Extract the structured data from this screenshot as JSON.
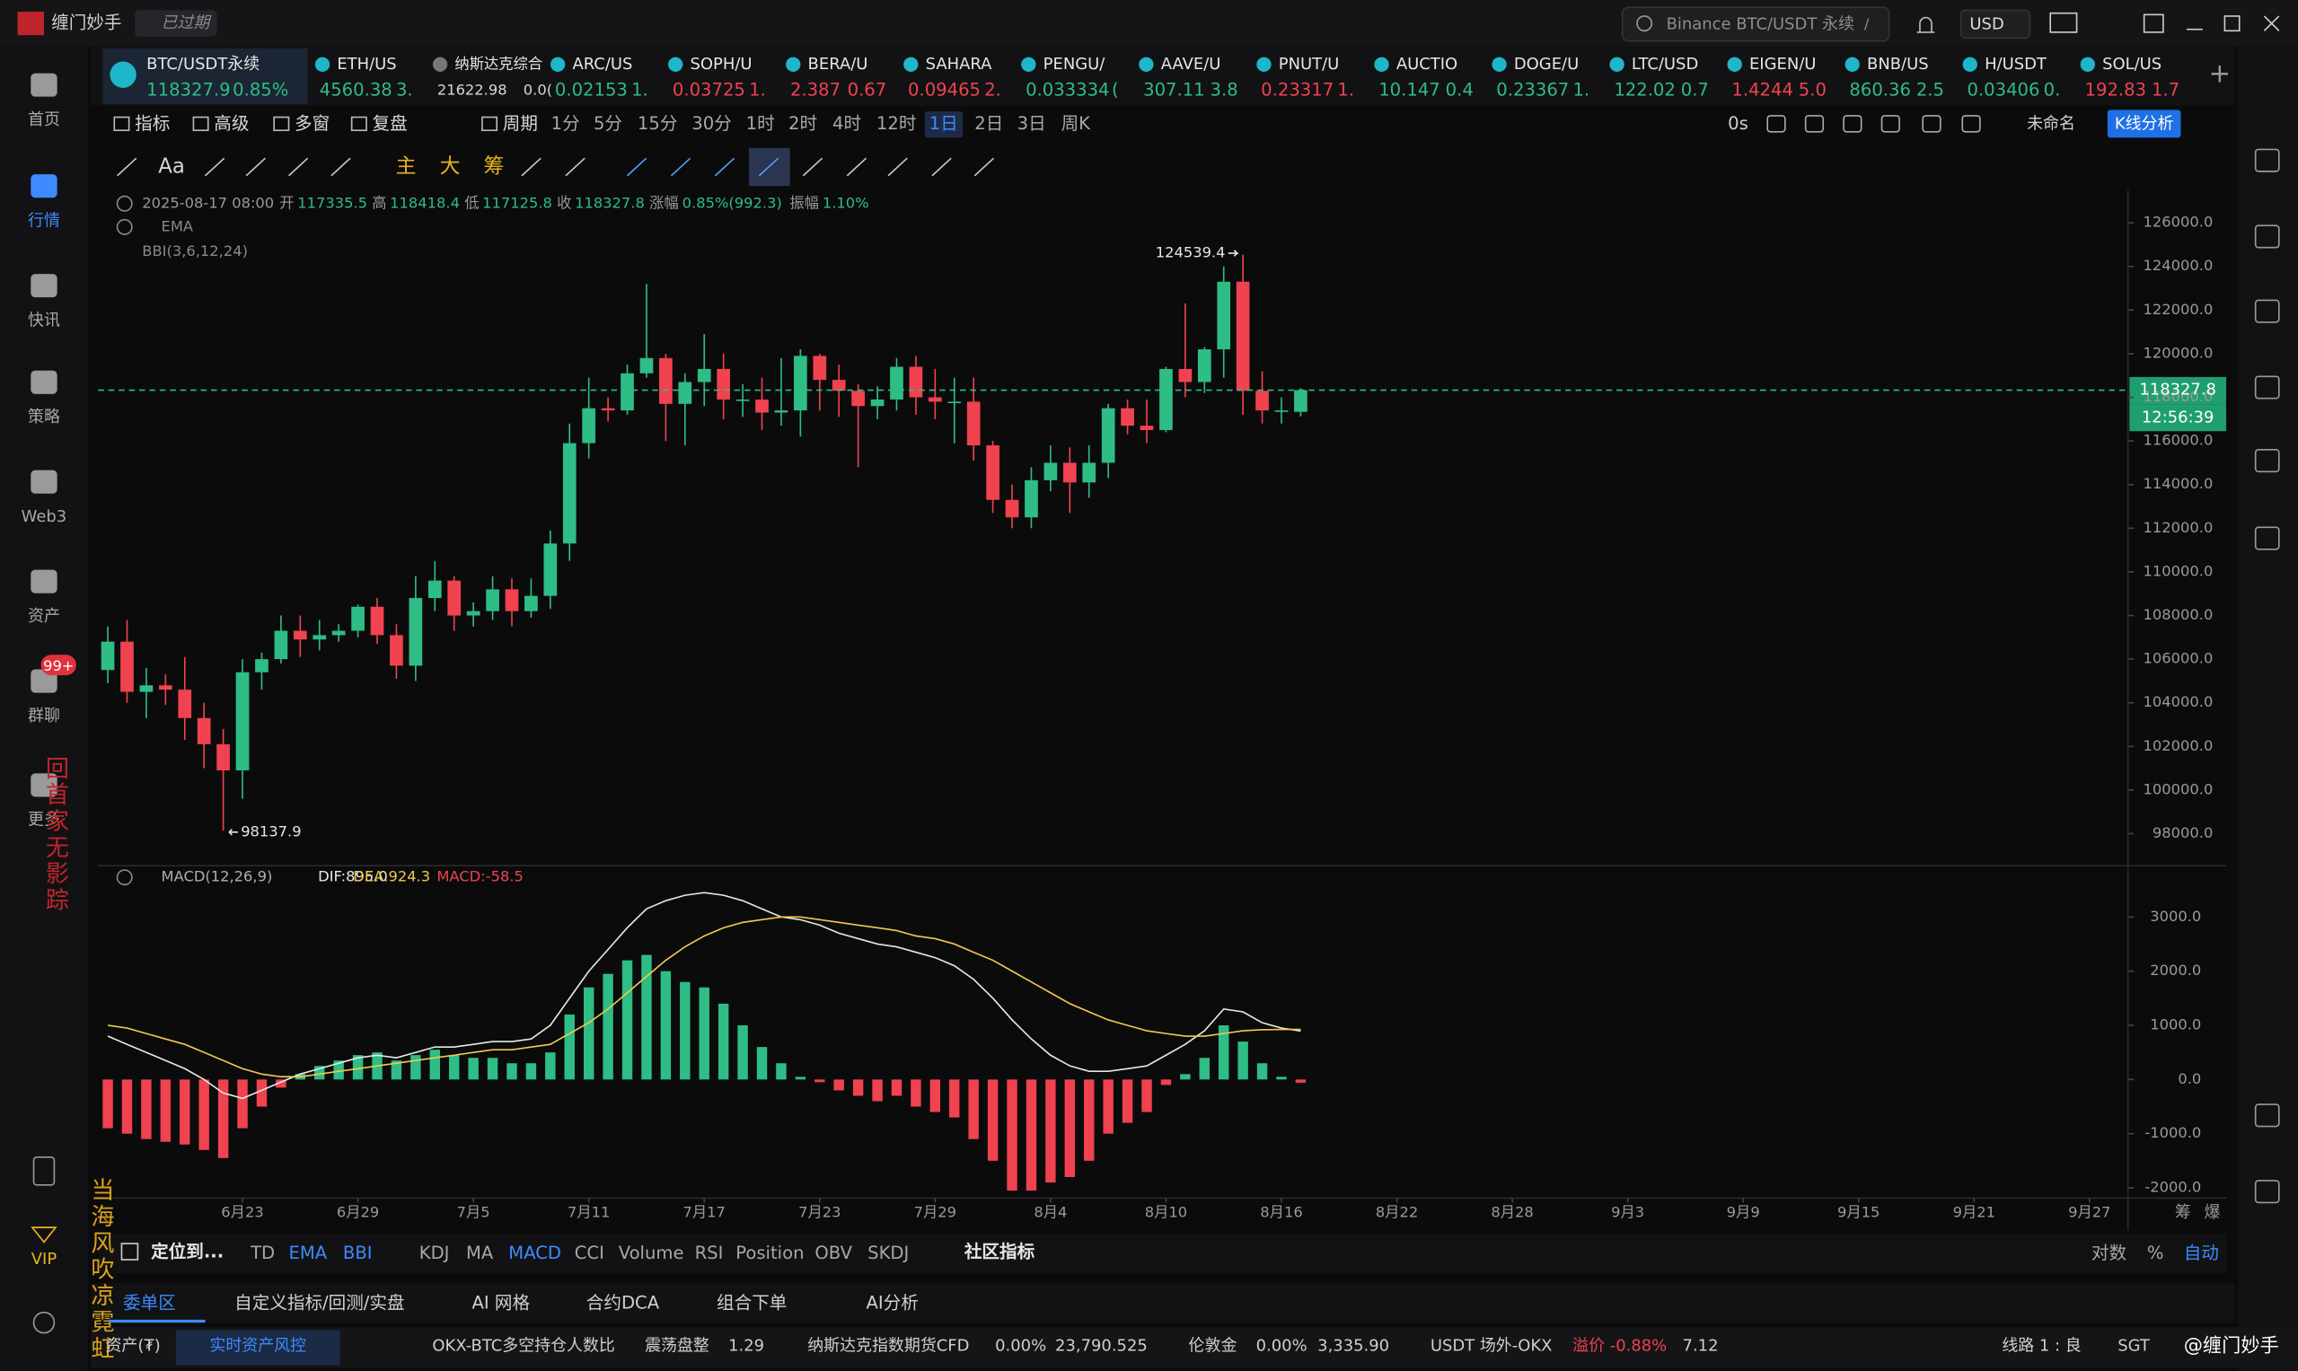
{
  "app": {
    "name": "缠门妙手",
    "status": "已过期",
    "search": "Binance BTC/USDT 永续",
    "search_key": "/",
    "currency": "USD"
  },
  "sidebar": {
    "items": [
      "首页",
      "行情",
      "快讯",
      "策略",
      "Web3",
      "资产",
      "群聊",
      "更多"
    ],
    "active_index": 1,
    "badge": "99+",
    "vip": "VIP"
  },
  "watermarks": [
    "回首家无影踪",
    "当海风吹凉霓虹"
  ],
  "tickers": [
    {
      "name": "BTC/USDT永续",
      "price": "118327.9",
      "change": "0.85%",
      "color": "#2ebd85"
    },
    {
      "name": "ETH/US",
      "price": "4560.38",
      "change": "3.",
      "color": "#2ebd85"
    },
    {
      "name": "纳斯达克综合",
      "price": "21622.98",
      "change": "0.0(",
      "color": "#d8d8d8"
    },
    {
      "name": "ARC/US",
      "price": "0.02153",
      "change": "1.",
      "color": "#2ebd85"
    },
    {
      "name": "SOPH/U",
      "price": "0.03725",
      "change": "1.",
      "color": "#f0424f"
    },
    {
      "name": "BERA/U",
      "price": "2.387",
      "change": "0.67",
      "color": "#f0424f"
    },
    {
      "name": "SAHARA",
      "price": "0.09465",
      "change": "2.",
      "color": "#f0424f"
    },
    {
      "name": "PENGU/",
      "price": "0.033334",
      "change": "(",
      "color": "#2ebd85"
    },
    {
      "name": "AAVE/U",
      "price": "307.11",
      "change": "3.8",
      "color": "#2ebd85"
    },
    {
      "name": "PNUT/U",
      "price": "0.23317",
      "change": "1.",
      "color": "#f0424f"
    },
    {
      "name": "AUCTIO",
      "price": "10.147",
      "change": "0.4",
      "color": "#2ebd85"
    },
    {
      "name": "DOGE/U",
      "price": "0.23367",
      "change": "1.",
      "color": "#2ebd85"
    },
    {
      "name": "LTC/USD",
      "price": "122.02",
      "change": "0.7",
      "color": "#2ebd85"
    },
    {
      "name": "EIGEN/U",
      "price": "1.4244",
      "change": "5.0",
      "color": "#f0424f"
    },
    {
      "name": "BNB/US",
      "price": "860.36",
      "change": "2.5",
      "color": "#2ebd85"
    },
    {
      "name": "H/USDT",
      "price": "0.03406",
      "change": "0.",
      "color": "#2ebd85"
    },
    {
      "name": "SOL/US",
      "price": "192.83",
      "change": "1.7",
      "color": "#f0424f"
    }
  ],
  "toolbar": {
    "items": [
      "指标",
      "高级",
      "多窗",
      "复盘",
      "周期"
    ],
    "periods": [
      "1分",
      "5分",
      "15分",
      "30分",
      "1时",
      "2时",
      "4时",
      "12时",
      "1日",
      "2日",
      "3日",
      "周K"
    ],
    "active_period_index": 8,
    "timer": "0s",
    "layout_name": "未命名",
    "analysis": "K线分析"
  },
  "draw_tools": [
    "Aa",
    "主",
    "大",
    "筹"
  ],
  "info": {
    "time": "2025-08-17 08:00",
    "fields": [
      [
        "开",
        "117335.5"
      ],
      [
        "高",
        "118418.4"
      ],
      [
        "低",
        "117125.8"
      ],
      [
        "收",
        "118327.8"
      ],
      [
        "涨幅",
        "0.85%(992.3)"
      ],
      [
        "振幅",
        "1.10%"
      ]
    ],
    "ema": "EMA",
    "bbi": "BBI(3,6,12,24)",
    "macd": "MACD(12,26,9)",
    "dif": "DIF:895.0",
    "dea": "DEA:924.3",
    "macd_value": "MACD:-58.5"
  },
  "chart_data": {
    "type": "candlestick",
    "up_color": "#2ebd85",
    "down_color": "#f0424f",
    "dif_color": "#e8e8e8",
    "dea_color": "#f2c94c",
    "open": [
      105500,
      106800,
      104500,
      104800,
      104600,
      103300,
      102100,
      100900,
      105400,
      106000,
      107300,
      106900,
      107100,
      107300,
      108400,
      107100,
      105700,
      108800,
      109600,
      108000,
      108200,
      109200,
      108200,
      108900,
      111300,
      115900,
      117500,
      117400,
      119100,
      119800,
      117700,
      118700,
      119300,
      117900,
      117900,
      117300,
      117400,
      119900,
      118800,
      118300,
      117600,
      117900,
      119400,
      118000,
      117800,
      117800,
      115800,
      113300,
      112500,
      114200,
      115000,
      114100,
      115000,
      117500,
      116700,
      116500,
      119300,
      118700,
      120200,
      123300,
      118300,
      117400,
      117335.5
    ],
    "high": [
      107500,
      107800,
      105600,
      105300,
      106100,
      104000,
      102800,
      106000,
      106300,
      108000,
      108000,
      107800,
      107600,
      108500,
      108800,
      107600,
      109800,
      110500,
      109800,
      108600,
      109800,
      109700,
      109700,
      111900,
      116800,
      118900,
      118000,
      119500,
      123200,
      120000,
      119100,
      120900,
      120000,
      118600,
      118900,
      119800,
      120200,
      120000,
      119500,
      118600,
      118500,
      119800,
      119900,
      119300,
      118900,
      118900,
      116000,
      114000,
      114800,
      115800,
      115700,
      115800,
      117700,
      117900,
      117900,
      119400,
      122300,
      120300,
      124000,
      124539.4,
      119200,
      118000,
      118418.4
    ],
    "low": [
      104900,
      104000,
      103300,
      103900,
      102300,
      101000,
      98137.9,
      99600,
      104600,
      105800,
      106100,
      106400,
      106800,
      107000,
      106700,
      105100,
      105000,
      108200,
      107300,
      107500,
      107800,
      107500,
      107900,
      108300,
      110500,
      115200,
      116900,
      117200,
      118900,
      116000,
      115800,
      117600,
      117000,
      117100,
      116500,
      116700,
      116200,
      117400,
      117100,
      114800,
      117000,
      117400,
      117200,
      117000,
      115900,
      115100,
      112700,
      112000,
      112000,
      113700,
      112700,
      113400,
      114300,
      116300,
      115900,
      116400,
      118000,
      118200,
      118900,
      117200,
      116800,
      116800,
      117125.8
    ],
    "close": [
      106800,
      104500,
      104800,
      104600,
      103300,
      102100,
      100900,
      105400,
      106000,
      107300,
      106900,
      107100,
      107300,
      108400,
      107100,
      105700,
      108800,
      109600,
      108000,
      108200,
      109200,
      108200,
      108900,
      111300,
      115900,
      117500,
      117400,
      119100,
      119800,
      117700,
      118700,
      119300,
      117900,
      117900,
      117300,
      117400,
      119900,
      118800,
      118300,
      117600,
      117900,
      119400,
      118000,
      117800,
      117800,
      115800,
      113300,
      112500,
      114200,
      115000,
      114100,
      115000,
      117500,
      116700,
      116500,
      119300,
      118700,
      120200,
      123300,
      118300,
      117400,
      117400,
      118327.8
    ],
    "dif": [
      800,
      650,
      500,
      350,
      200,
      0,
      -250,
      -350,
      -200,
      -50,
      100,
      200,
      300,
      400,
      450,
      400,
      500,
      600,
      600,
      650,
      700,
      700,
      750,
      1000,
      1500,
      2000,
      2400,
      2800,
      3150,
      3300,
      3400,
      3450,
      3400,
      3300,
      3150,
      3000,
      2950,
      2850,
      2700,
      2600,
      2500,
      2450,
      2350,
      2250,
      2100,
      1850,
      1500,
      1100,
      750,
      450,
      250,
      150,
      150,
      200,
      250,
      450,
      650,
      900,
      1300,
      1250,
      1050,
      950,
      895
    ],
    "dea": [
      1000,
      950,
      850,
      750,
      650,
      500,
      350,
      200,
      100,
      50,
      50,
      100,
      150,
      200,
      250,
      300,
      350,
      400,
      450,
      500,
      550,
      550,
      600,
      650,
      850,
      1050,
      1300,
      1600,
      1900,
      2200,
      2450,
      2650,
      2800,
      2900,
      2950,
      3000,
      3000,
      2950,
      2900,
      2850,
      2800,
      2750,
      2650,
      2600,
      2500,
      2350,
      2200,
      2000,
      1800,
      1600,
      1400,
      1250,
      1100,
      1000,
      900,
      850,
      800,
      800,
      850,
      900,
      920,
      925,
      924.3
    ],
    "macd": [
      -900,
      -1000,
      -1100,
      -1150,
      -1200,
      -1300,
      -1450,
      -900,
      -500,
      -150,
      100,
      250,
      350,
      450,
      500,
      350,
      450,
      550,
      450,
      400,
      400,
      300,
      300,
      500,
      1200,
      1700,
      1950,
      2200,
      2300,
      2000,
      1800,
      1700,
      1400,
      1000,
      600,
      300,
      50,
      -50,
      -200,
      -300,
      -400,
      -300,
      -500,
      -600,
      -700,
      -1100,
      -1500,
      -2050,
      -2050,
      -1900,
      -1800,
      -1500,
      -1000,
      -800,
      -600,
      -100,
      100,
      400,
      1000,
      700,
      300,
      50,
      -58.5
    ],
    "high_mark_index": 59,
    "low_mark_index": 6,
    "countdown": "12:56:39",
    "xlim": [
      -0.5,
      105
    ],
    "xticks": [
      {
        "value": 7,
        "label": "6月23"
      },
      {
        "value": 13,
        "label": "6月29"
      },
      {
        "value": 19,
        "label": "7月5"
      },
      {
        "value": 25,
        "label": "7月11"
      },
      {
        "value": 31,
        "label": "7月17"
      },
      {
        "value": 37,
        "label": "7月23"
      },
      {
        "value": 43,
        "label": "7月29"
      },
      {
        "value": 49,
        "label": "8月4"
      },
      {
        "value": 55,
        "label": "8月10"
      },
      {
        "value": 61,
        "label": "8月16"
      },
      {
        "value": 67,
        "label": "8月22"
      },
      {
        "value": 73,
        "label": "8月28"
      },
      {
        "value": 79,
        "label": "9月3"
      },
      {
        "value": 85,
        "label": "9月9"
      },
      {
        "value": 91,
        "label": "9月15"
      },
      {
        "value": 97,
        "label": "9月21"
      },
      {
        "value": 103,
        "label": "9月27"
      }
    ],
    "ylim": [
      96600,
      127350
    ],
    "yticks": [
      {
        "value": 98000,
        "label": "98000.0"
      },
      {
        "value": 100000,
        "label": "100000.0"
      },
      {
        "value": 102000,
        "label": "102000.0"
      },
      {
        "value": 104000,
        "label": "104000.0"
      },
      {
        "value": 106000,
        "label": "106000.0"
      },
      {
        "value": 108000,
        "label": "108000.0"
      },
      {
        "value": 110000,
        "label": "110000.0"
      },
      {
        "value": 112000,
        "label": "112000.0"
      },
      {
        "value": 114000,
        "label": "114000.0"
      },
      {
        "value": 116000,
        "label": "116000.0"
      },
      {
        "value": 118000,
        "label": "118000.0"
      },
      {
        "value": 120000,
        "label": "120000.0"
      },
      {
        "value": 122000,
        "label": "122000.0"
      },
      {
        "value": 124000,
        "label": "124000.0"
      },
      {
        "value": 126000,
        "label": "126000.0"
      }
    ],
    "y2lim": [
      -2190,
      3920
    ],
    "y2ticks": [
      {
        "value": -2000,
        "label": "-2000.0"
      },
      {
        "value": -1000,
        "label": "-1000.0"
      },
      {
        "value": 0,
        "label": "0.0"
      },
      {
        "value": 1000,
        "label": "1000.0"
      },
      {
        "value": 2000,
        "label": "2000.0"
      },
      {
        "value": 3000,
        "label": "3000.0"
      }
    ],
    "grid": false,
    "corner": [
      "筹",
      "爆"
    ]
  },
  "indicator_bar": {
    "locate": "定位到...",
    "main": [
      "TD",
      "EMA",
      "BBI"
    ],
    "main_active": [
      1,
      2
    ],
    "sub": [
      "KDJ",
      "MA",
      "MACD",
      "CCI",
      "Volume",
      "RSI",
      "Position",
      "OBV",
      "SKDJ"
    ],
    "sub_active": [
      2
    ],
    "community": "社区指标",
    "scale": [
      "对数",
      "%",
      "自动"
    ],
    "scale_active": 2
  },
  "tabs": {
    "items": [
      "委单区",
      "自定义指标/回测/实盘",
      "AI 网格",
      "合约DCA",
      "组合下单",
      "AI分析"
    ],
    "active_index": 0
  },
  "status": {
    "assets": "资产(₮)",
    "risk": "实时资产风控",
    "items": [
      "OKX-BTC多空持仓人数比",
      "震荡盘整",
      "1.29",
      "纳斯达克指数期货CFD",
      "0.00%",
      "23,790.525",
      "伦敦金",
      "0.00%",
      "3,335.90",
      "USDT 场外-OKX",
      "溢价 -0.88%",
      "7.12"
    ],
    "line": "线路 1 : 良",
    "tz": "SGT",
    "handle": "@缠门妙手"
  }
}
